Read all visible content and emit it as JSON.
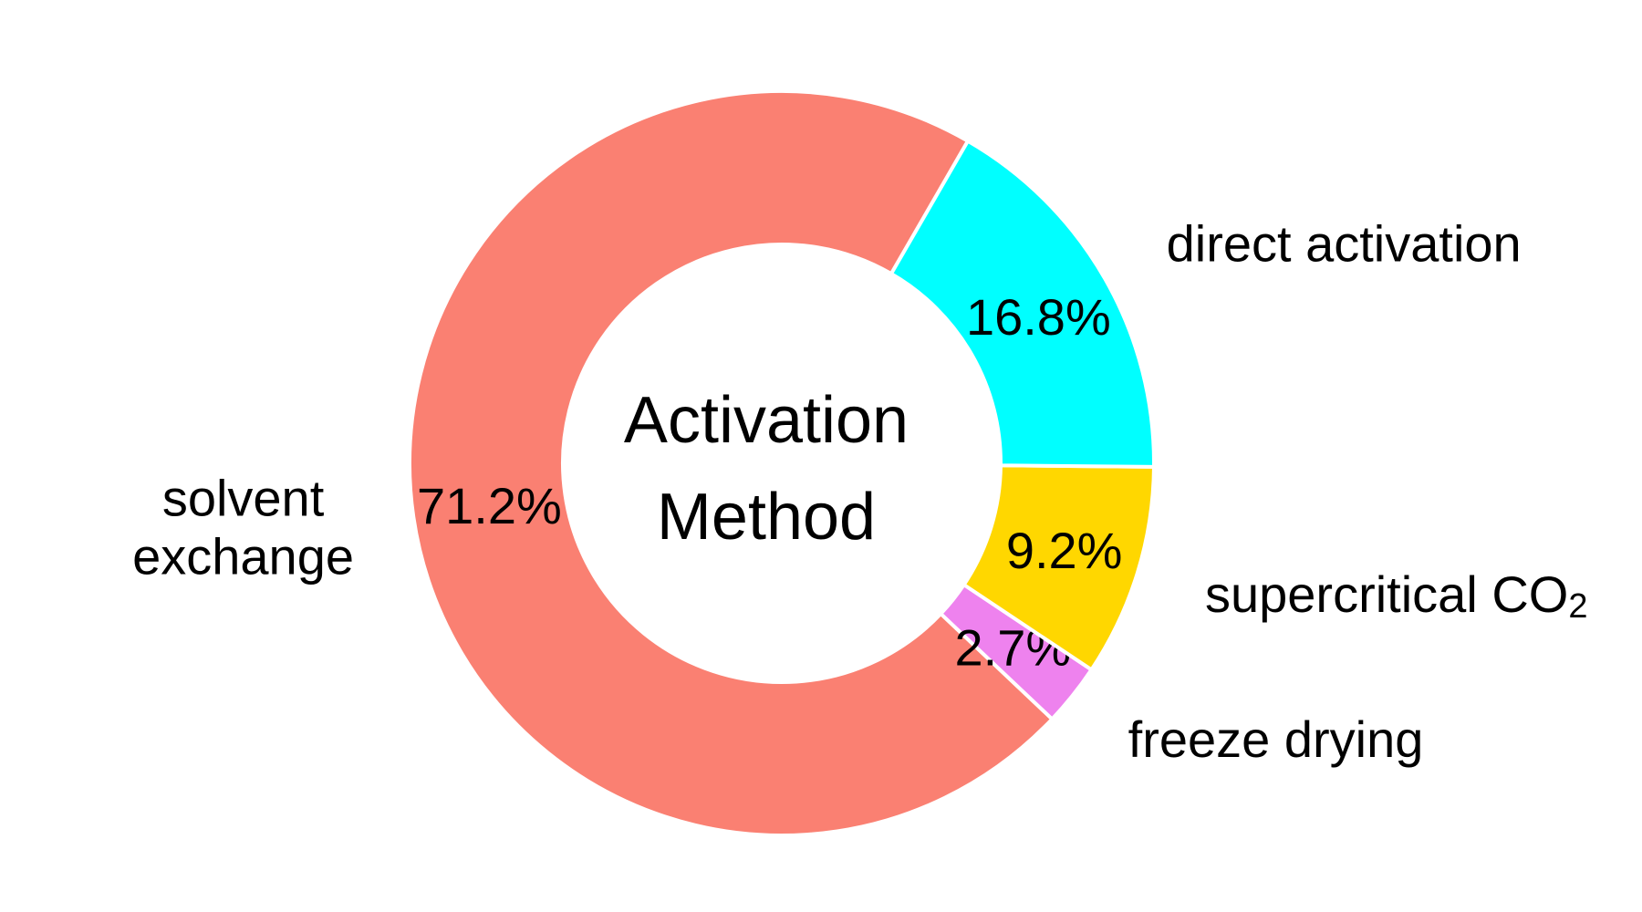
{
  "chart_data": {
    "type": "pie",
    "subtype": "donut",
    "center_title_lines": [
      "Activation",
      "Method"
    ],
    "slices": [
      {
        "label": "solvent exchange",
        "label_lines": [
          "solvent",
          "exchange"
        ],
        "value": 71.2,
        "value_label": "71.2%",
        "color": "#FA8072"
      },
      {
        "label": "freeze drying",
        "label_lines": [
          "freeze drying"
        ],
        "value": 2.7,
        "value_label": "2.7%",
        "color": "#EE82EE"
      },
      {
        "label": "supercritical CO2",
        "label_lines": [
          "supercritical CO",
          "2"
        ],
        "value": 9.2,
        "value_label": "9.2%",
        "color": "#FFD700"
      },
      {
        "label": "direct activation",
        "label_lines": [
          "direct activation"
        ],
        "value": 16.8,
        "value_label": "16.8%",
        "color": "#00FFFF"
      }
    ],
    "start_angle_deg": 60,
    "direction": "counterclockwise",
    "legend": "none"
  }
}
